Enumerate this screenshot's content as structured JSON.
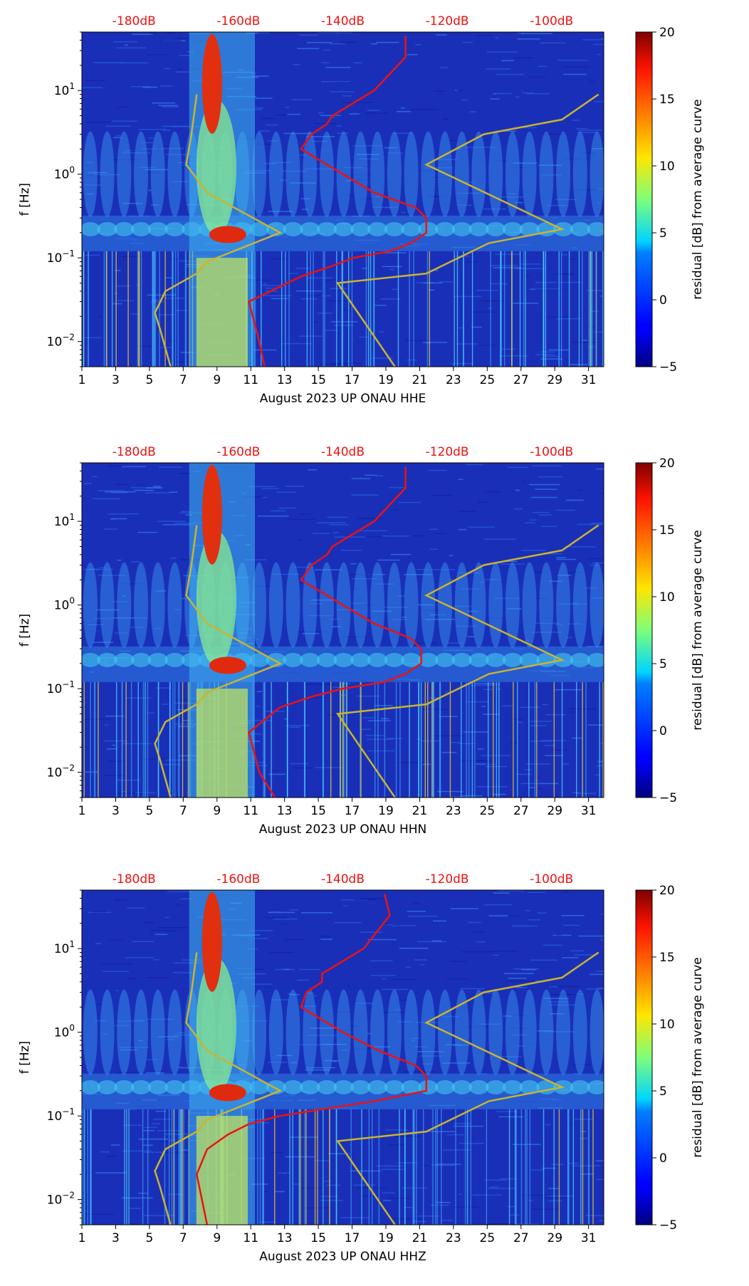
{
  "chart_data": [
    {
      "type": "heatmap",
      "title": "",
      "xlabel": "August 2023 UP ONAU  HHE",
      "ylabel": "f [Hz]",
      "colorbar_label": "residual [dB] from average curve",
      "colorbar_ticks": [
        "20",
        "15",
        "10",
        "5",
        "0",
        "−5"
      ],
      "colorbar_range": [
        -5,
        20
      ],
      "top_axis_labels": [
        "-180dB",
        "-160dB",
        "-140dB",
        "-120dB",
        "-100dB"
      ],
      "x_tick_labels": [
        "1",
        "3",
        "5",
        "7",
        "9",
        "11",
        "13",
        "15",
        "17",
        "19",
        "21",
        "23",
        "25",
        "27",
        "29",
        "31"
      ],
      "x_range": [
        1,
        31.9
      ],
      "y_tick_labels": [
        {
          "base": "10",
          "exp": "1"
        },
        {
          "base": "10",
          "exp": "0"
        },
        {
          "base": "10",
          "exp": "−1"
        },
        {
          "base": "10",
          "exp": "−2"
        }
      ],
      "y_range": [
        0.005,
        50
      ],
      "scale_y": "log",
      "high_amplitude_periods": [
        [
          8.2,
          10.4
        ]
      ],
      "median_psd_curve": {
        "name": "median PSD",
        "color": "#ee1111",
        "db": [
          -128,
          -128,
          -134,
          -142,
          -143,
          -146,
          -148,
          -140,
          -134,
          -126,
          -124,
          -124,
          -127,
          -131,
          -138,
          -142,
          -148,
          -158,
          -156,
          -155
        ],
        "f": [
          45,
          25,
          10,
          5,
          4,
          3,
          2,
          1,
          0.6,
          0.4,
          0.3,
          0.2,
          0.15,
          0.12,
          0.1,
          0.08,
          0.06,
          0.03,
          0.01,
          0.005
        ]
      },
      "noise_model_curves": [
        {
          "name": "NLNM",
          "color": "#c8b432",
          "db": [
            -168,
            -169,
            -170,
            -166,
            -152,
            -166,
            -168,
            -174,
            -176,
            -175,
            -173
          ],
          "f": [
            9,
            3,
            1.3,
            0.6,
            0.2,
            0.09,
            0.065,
            0.04,
            0.022,
            0.014,
            0.005
          ]
        },
        {
          "name": "NHNM",
          "color": "#c8b432",
          "db": [
            -91,
            -98,
            -113,
            -124,
            -98,
            -112,
            -124,
            -141,
            -130
          ],
          "f": [
            9,
            4.5,
            3,
            1.3,
            0.22,
            0.15,
            0.065,
            0.05,
            0.005
          ]
        }
      ]
    },
    {
      "type": "heatmap",
      "title": "",
      "xlabel": "August 2023 UP ONAU  HHN",
      "ylabel": "f [Hz]",
      "colorbar_label": "residual [dB] from average curve",
      "colorbar_ticks": [
        "20",
        "15",
        "10",
        "5",
        "0",
        "−5"
      ],
      "colorbar_range": [
        -5,
        20
      ],
      "top_axis_labels": [
        "-180dB",
        "-160dB",
        "-140dB",
        "-120dB",
        "-100dB"
      ],
      "x_tick_labels": [
        "1",
        "3",
        "5",
        "7",
        "9",
        "11",
        "13",
        "15",
        "17",
        "19",
        "21",
        "23",
        "25",
        "27",
        "29",
        "31"
      ],
      "x_range": [
        1,
        31.9
      ],
      "y_tick_labels": [
        {
          "base": "10",
          "exp": "1"
        },
        {
          "base": "10",
          "exp": "0"
        },
        {
          "base": "10",
          "exp": "−1"
        },
        {
          "base": "10",
          "exp": "−2"
        }
      ],
      "y_range": [
        0.005,
        50
      ],
      "scale_y": "log",
      "high_amplitude_periods": [
        [
          8.2,
          10.4
        ]
      ],
      "median_psd_curve": {
        "name": "median PSD",
        "color": "#ee1111",
        "db": [
          -128,
          -128,
          -134,
          -142,
          -143,
          -146,
          -148,
          -140,
          -134,
          -127,
          -125,
          -125,
          -128,
          -132,
          -140,
          -146,
          -152,
          -158,
          -156,
          -153
        ],
        "f": [
          45,
          25,
          10,
          5,
          4,
          3,
          2,
          1,
          0.6,
          0.4,
          0.3,
          0.2,
          0.15,
          0.12,
          0.1,
          0.08,
          0.06,
          0.03,
          0.01,
          0.005
        ]
      },
      "noise_model_curves": [
        {
          "name": "NLNM",
          "color": "#c8b432",
          "db": [
            -168,
            -169,
            -170,
            -166,
            -152,
            -166,
            -168,
            -174,
            -176,
            -175,
            -173
          ],
          "f": [
            9,
            3,
            1.3,
            0.6,
            0.2,
            0.09,
            0.065,
            0.04,
            0.022,
            0.014,
            0.005
          ]
        },
        {
          "name": "NHNM",
          "color": "#c8b432",
          "db": [
            -91,
            -98,
            -113,
            -124,
            -98,
            -112,
            -124,
            -141,
            -130
          ],
          "f": [
            9,
            4.5,
            3,
            1.3,
            0.22,
            0.15,
            0.065,
            0.05,
            0.005
          ]
        }
      ]
    },
    {
      "type": "heatmap",
      "title": "",
      "xlabel": "August 2023 UP ONAU  HHZ",
      "ylabel": "f [Hz]",
      "colorbar_label": "residual [dB] from average curve",
      "colorbar_ticks": [
        "20",
        "15",
        "10",
        "5",
        "0",
        "−5"
      ],
      "colorbar_range": [
        -5,
        20
      ],
      "top_axis_labels": [
        "-180dB",
        "-160dB",
        "-140dB",
        "-120dB",
        "-100dB"
      ],
      "x_tick_labels": [
        "1",
        "3",
        "5",
        "7",
        "9",
        "11",
        "13",
        "15",
        "17",
        "19",
        "21",
        "23",
        "25",
        "27",
        "29",
        "31"
      ],
      "x_range": [
        1,
        31.9
      ],
      "y_tick_labels": [
        {
          "base": "10",
          "exp": "1"
        },
        {
          "base": "10",
          "exp": "0"
        },
        {
          "base": "10",
          "exp": "−1"
        },
        {
          "base": "10",
          "exp": "−2"
        }
      ],
      "y_range": [
        0.005,
        50
      ],
      "scale_y": "log",
      "high_amplitude_periods": [
        [
          8.2,
          10.4
        ]
      ],
      "median_psd_curve": {
        "name": "median PSD",
        "color": "#ee1111",
        "db": [
          -132,
          -131,
          -136,
          -144,
          -144,
          -147,
          -148,
          -140,
          -133,
          -126,
          -124,
          -124,
          -134,
          -144,
          -152,
          -158,
          -162,
          -166,
          -168,
          -166
        ],
        "f": [
          45,
          25,
          10,
          5,
          4,
          3,
          2,
          1,
          0.6,
          0.4,
          0.3,
          0.2,
          0.15,
          0.12,
          0.1,
          0.08,
          0.06,
          0.04,
          0.02,
          0.005
        ]
      },
      "noise_model_curves": [
        {
          "name": "NLNM",
          "color": "#c8b432",
          "db": [
            -168,
            -169,
            -170,
            -166,
            -152,
            -166,
            -168,
            -174,
            -176,
            -175,
            -173
          ],
          "f": [
            9,
            3,
            1.3,
            0.6,
            0.2,
            0.09,
            0.065,
            0.04,
            0.022,
            0.014,
            0.005
          ]
        },
        {
          "name": "NHNM",
          "color": "#c8b432",
          "db": [
            -91,
            -98,
            -113,
            -124,
            -98,
            -112,
            -124,
            -141,
            -130
          ],
          "f": [
            9,
            4.5,
            3,
            1.3,
            0.22,
            0.15,
            0.065,
            0.05,
            0.005
          ]
        }
      ]
    }
  ]
}
